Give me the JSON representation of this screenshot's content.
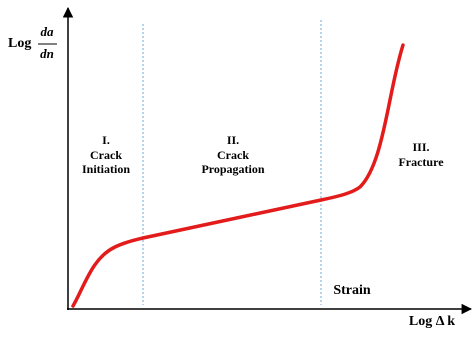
{
  "y_axis_label": {
    "prefix": "Log",
    "numerator": "da",
    "denominator": "dn"
  },
  "x_axis_label": "Log Δ k",
  "regions": [
    {
      "number": "I.",
      "lines": [
        "Crack",
        "Initiation"
      ]
    },
    {
      "number": "II.",
      "lines": [
        "Crack",
        "Propagation"
      ]
    },
    {
      "number": "III.",
      "lines": [
        "Fracture"
      ]
    }
  ],
  "annotation": "Strain"
}
